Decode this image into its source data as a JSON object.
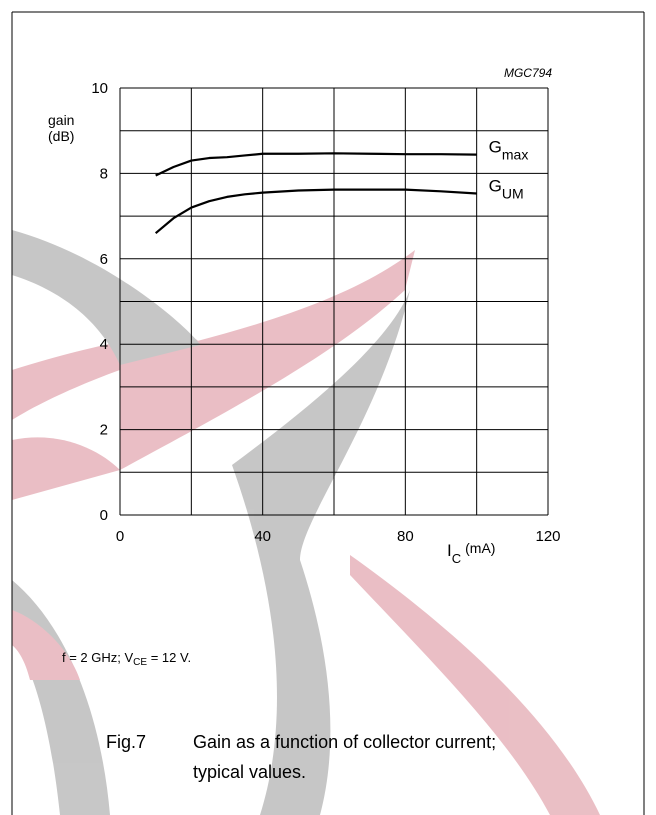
{
  "chart_data": {
    "type": "line",
    "code": "MGC794",
    "y_label": [
      "gain",
      "(dB)"
    ],
    "x_label": {
      "main": "I",
      "sub": "C",
      "unit": "(mA)"
    },
    "x": [
      10,
      15,
      20,
      25,
      30,
      35,
      40,
      50,
      60,
      70,
      80,
      90,
      100
    ],
    "series": [
      {
        "name": "Gmax",
        "color": "#000000",
        "values": [
          7.95,
          8.15,
          8.3,
          8.36,
          8.38,
          8.42,
          8.46,
          8.46,
          8.47,
          8.46,
          8.45,
          8.45,
          8.44
        ]
      },
      {
        "name": "GUM",
        "color": "#000000",
        "values": [
          6.6,
          6.95,
          7.2,
          7.35,
          7.45,
          7.51,
          7.55,
          7.6,
          7.62,
          7.62,
          7.62,
          7.58,
          7.53
        ]
      }
    ],
    "xlim": [
      0,
      120
    ],
    "ylim": [
      0,
      10
    ],
    "xticks": [
      0,
      40,
      80,
      120
    ],
    "yticks": [
      0,
      2,
      4,
      6,
      8,
      10
    ],
    "xgrid": [
      0,
      20,
      40,
      60,
      80,
      100,
      120
    ],
    "ygrid": [
      0,
      1,
      2,
      3,
      4,
      5,
      6,
      7,
      8,
      9,
      10
    ],
    "grid": true,
    "note": [
      "f = 2 GHz; V",
      "CE",
      " = 12 V."
    ],
    "caption": {
      "label": "Fig.7",
      "lines": [
        "Gain as a function of collector current;",
        "typical values."
      ]
    }
  }
}
